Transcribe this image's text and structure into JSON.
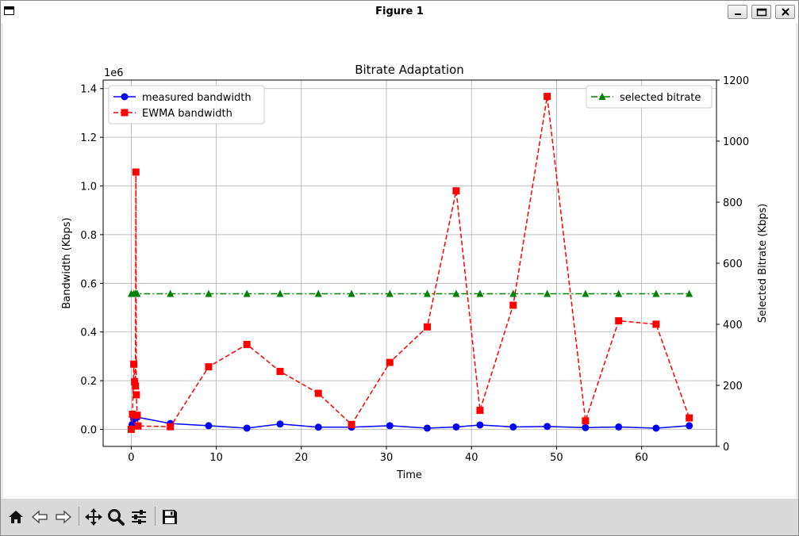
{
  "window": {
    "title": "Figure 1"
  },
  "toolbar": {
    "tools": [
      "home-icon",
      "back-icon",
      "forward-icon",
      "pan-icon",
      "zoom-icon",
      "configure-subplots-icon",
      "save-icon"
    ]
  },
  "chart_data": {
    "type": "line",
    "title": "Bitrate Adaptation",
    "xlabel": "Time",
    "ylabel": "Bandwidth (Kbps)",
    "y2label": "Selected Bitrate (Kbps)",
    "yscale_label": "1e6",
    "xlim": [
      -3.3,
      68.8
    ],
    "ylim": [
      -70000,
      1435000
    ],
    "y2lim": [
      0,
      1200
    ],
    "xticks": [
      0,
      10,
      20,
      30,
      40,
      50,
      60
    ],
    "yticks": [
      0.0,
      0.2,
      0.4,
      0.6,
      0.8,
      1.0,
      1.2,
      1.4
    ],
    "y2ticks": [
      0,
      200,
      400,
      600,
      800,
      1000,
      1200
    ],
    "grid": true,
    "legend_left": "top-left",
    "legend_right": "top-right",
    "colors": {
      "measured": "#0000ff",
      "ewma": "#ff0000",
      "bitrate": "#008000"
    },
    "series": [
      {
        "name": "measured bandwidth",
        "axis": "left",
        "marker": "circle",
        "linestyle": "solid",
        "x": [
          0.1,
          0.3,
          0.5,
          0.7,
          4.6,
          9.1,
          13.6,
          17.5,
          22.0,
          25.9,
          30.4,
          34.8,
          38.2,
          41.0,
          44.9,
          48.9,
          53.4,
          57.3,
          61.7,
          65.6
        ],
        "y": [
          20000,
          42000,
          55000,
          50000,
          24000,
          15000,
          5000,
          22000,
          9000,
          9000,
          15000,
          5000,
          10000,
          18000,
          10000,
          12000,
          7000,
          10000,
          5000,
          15000
        ]
      },
      {
        "name": "EWMA bandwidth",
        "axis": "left",
        "marker": "square",
        "linestyle": "dashed",
        "x": [
          0.0,
          0.15,
          0.3,
          0.4,
          0.5,
          0.55,
          0.6,
          0.7,
          0.8,
          4.6,
          9.1,
          13.6,
          17.5,
          22.0,
          25.9,
          30.4,
          34.8,
          38.2,
          41.0,
          44.9,
          48.9,
          53.4,
          57.3,
          61.7,
          65.6
        ],
        "y": [
          0,
          62000,
          268000,
          195000,
          178000,
          1057000,
          142000,
          58000,
          14000,
          11000,
          257000,
          349000,
          238000,
          148000,
          20000,
          275000,
          421000,
          980000,
          78000,
          510000,
          1368000,
          35000,
          446000,
          432000,
          47000
        ]
      },
      {
        "name": "selected bitrate",
        "axis": "right",
        "marker": "triangle",
        "linestyle": "dashdot",
        "x": [
          0.0,
          0.3,
          0.5,
          0.7,
          4.6,
          9.1,
          13.6,
          17.5,
          22.0,
          25.9,
          30.4,
          34.8,
          38.2,
          41.0,
          44.9,
          48.9,
          53.4,
          57.3,
          61.7,
          65.6
        ],
        "y": [
          500,
          500,
          500,
          500,
          500,
          500,
          500,
          500,
          500,
          500,
          500,
          500,
          500,
          500,
          500,
          500,
          500,
          500,
          500,
          500
        ]
      }
    ]
  }
}
